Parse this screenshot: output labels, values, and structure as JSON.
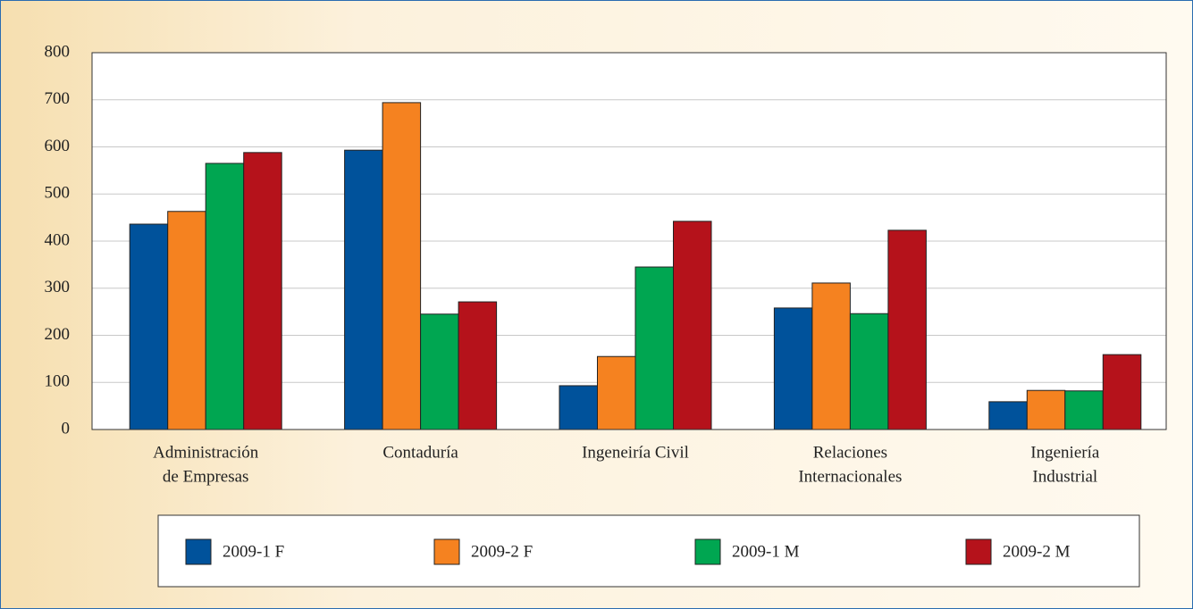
{
  "chart_data": {
    "type": "bar",
    "categories": [
      [
        "Administración",
        "de Empresas"
      ],
      [
        "Contaduría"
      ],
      [
        "Ingeneiría Civil"
      ],
      [
        "Relaciones",
        "Internacionales"
      ],
      [
        "Ingeniería",
        "Industrial"
      ]
    ],
    "series": [
      {
        "name": "2009-1 F",
        "color": "#00529b",
        "values": [
          436,
          593,
          93,
          258,
          59
        ]
      },
      {
        "name": "2009-2 F",
        "color": "#f58220",
        "values": [
          463,
          694,
          155,
          311,
          83
        ]
      },
      {
        "name": "2009-1 M",
        "color": "#00a651",
        "values": [
          565,
          245,
          345,
          246,
          82
        ]
      },
      {
        "name": "2009-2 M",
        "color": "#b5121b",
        "values": [
          588,
          271,
          442,
          423,
          159
        ]
      }
    ],
    "ylim": [
      0,
      800
    ],
    "yticks": [
      0,
      100,
      200,
      300,
      400,
      500,
      600,
      700,
      800
    ],
    "grid": true
  }
}
